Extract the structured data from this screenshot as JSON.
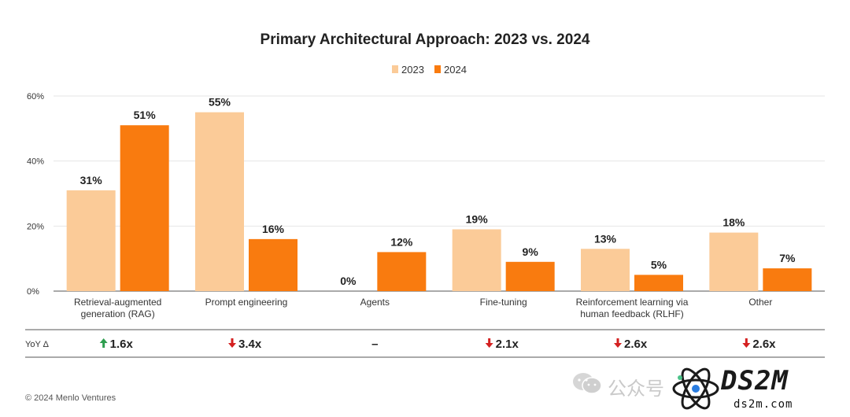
{
  "chart_data": {
    "type": "bar",
    "title": "Primary Architectural Approach: 2023 vs. 2024",
    "categories": [
      "Retrieval-augmented generation (RAG)",
      "Prompt engineering",
      "Agents",
      "Fine-tuning",
      "Reinforcement learning via human feedback (RLHF)",
      "Other"
    ],
    "category_lines": [
      [
        "Retrieval-augmented",
        "generation (RAG)"
      ],
      [
        "Prompt engineering"
      ],
      [
        "Agents"
      ],
      [
        "Fine-tuning"
      ],
      [
        "Reinforcement learning via",
        "human feedback (RLHF)"
      ],
      [
        "Other"
      ]
    ],
    "series": [
      {
        "name": "2023",
        "values": [
          31,
          55,
          0,
          19,
          13,
          18
        ],
        "labels": [
          "31%",
          "55%",
          "0%",
          "19%",
          "13%",
          "18%"
        ],
        "color": "#FBCB98"
      },
      {
        "name": "2024",
        "values": [
          51,
          16,
          12,
          9,
          5,
          7
        ],
        "labels": [
          "51%",
          "16%",
          "12%",
          "9%",
          "5%",
          "7%"
        ],
        "color": "#F97B0F"
      }
    ],
    "ylim": [
      0,
      60
    ],
    "yticks": [
      0,
      20,
      40,
      60
    ],
    "ytick_labels": [
      "0%",
      "20%",
      "40%",
      "60%"
    ],
    "xlabel": "",
    "ylabel": "",
    "legend_position": "top-center",
    "grid": true,
    "yoy": {
      "label": "YoY Δ",
      "values": [
        {
          "direction": "up",
          "text": "1.6x"
        },
        {
          "direction": "down",
          "text": "3.4x"
        },
        {
          "direction": "none",
          "text": "–"
        },
        {
          "direction": "down",
          "text": "2.1x"
        },
        {
          "direction": "down",
          "text": "2.6x"
        },
        {
          "direction": "down",
          "text": "2.6x"
        }
      ],
      "colors": {
        "up": "#2E9E4F",
        "down": "#D42020"
      }
    }
  },
  "footer": "© 2024 Menlo Ventures",
  "watermark": {
    "channel_text": "公众号",
    "logo": "DS2M",
    "url": "ds2m.com"
  }
}
